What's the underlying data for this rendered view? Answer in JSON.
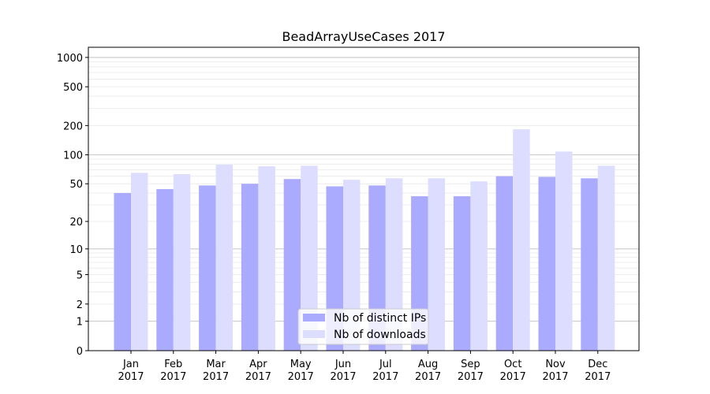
{
  "chart_data": {
    "type": "bar",
    "title": "BeadArrayUseCases 2017",
    "xlabel": "",
    "ylabel": "",
    "yscale": "symlog (log10(y+1))",
    "ylim": [
      0,
      1270
    ],
    "yticks": [
      0,
      1,
      2,
      5,
      10,
      20,
      50,
      100,
      200,
      500,
      1000
    ],
    "grid": true,
    "legend_position": "bottom-center",
    "categories": [
      "Jan\n2017",
      "Feb\n2017",
      "Mar\n2017",
      "Apr\n2017",
      "May\n2017",
      "Jun\n2017",
      "Jul\n2017",
      "Aug\n2017",
      "Sep\n2017",
      "Oct\n2017",
      "Nov\n2017",
      "Dec\n2017"
    ],
    "series": [
      {
        "name": "Nb of distinct IPs",
        "color": "#aaaaff",
        "values": [
          40,
          44,
          48,
          50,
          56,
          47,
          48,
          37,
          37,
          60,
          59,
          57
        ]
      },
      {
        "name": "Nb of downloads",
        "color": "#ddddff",
        "values": [
          65,
          63,
          79,
          76,
          77,
          55,
          57,
          57,
          53,
          183,
          108,
          77
        ]
      }
    ]
  }
}
